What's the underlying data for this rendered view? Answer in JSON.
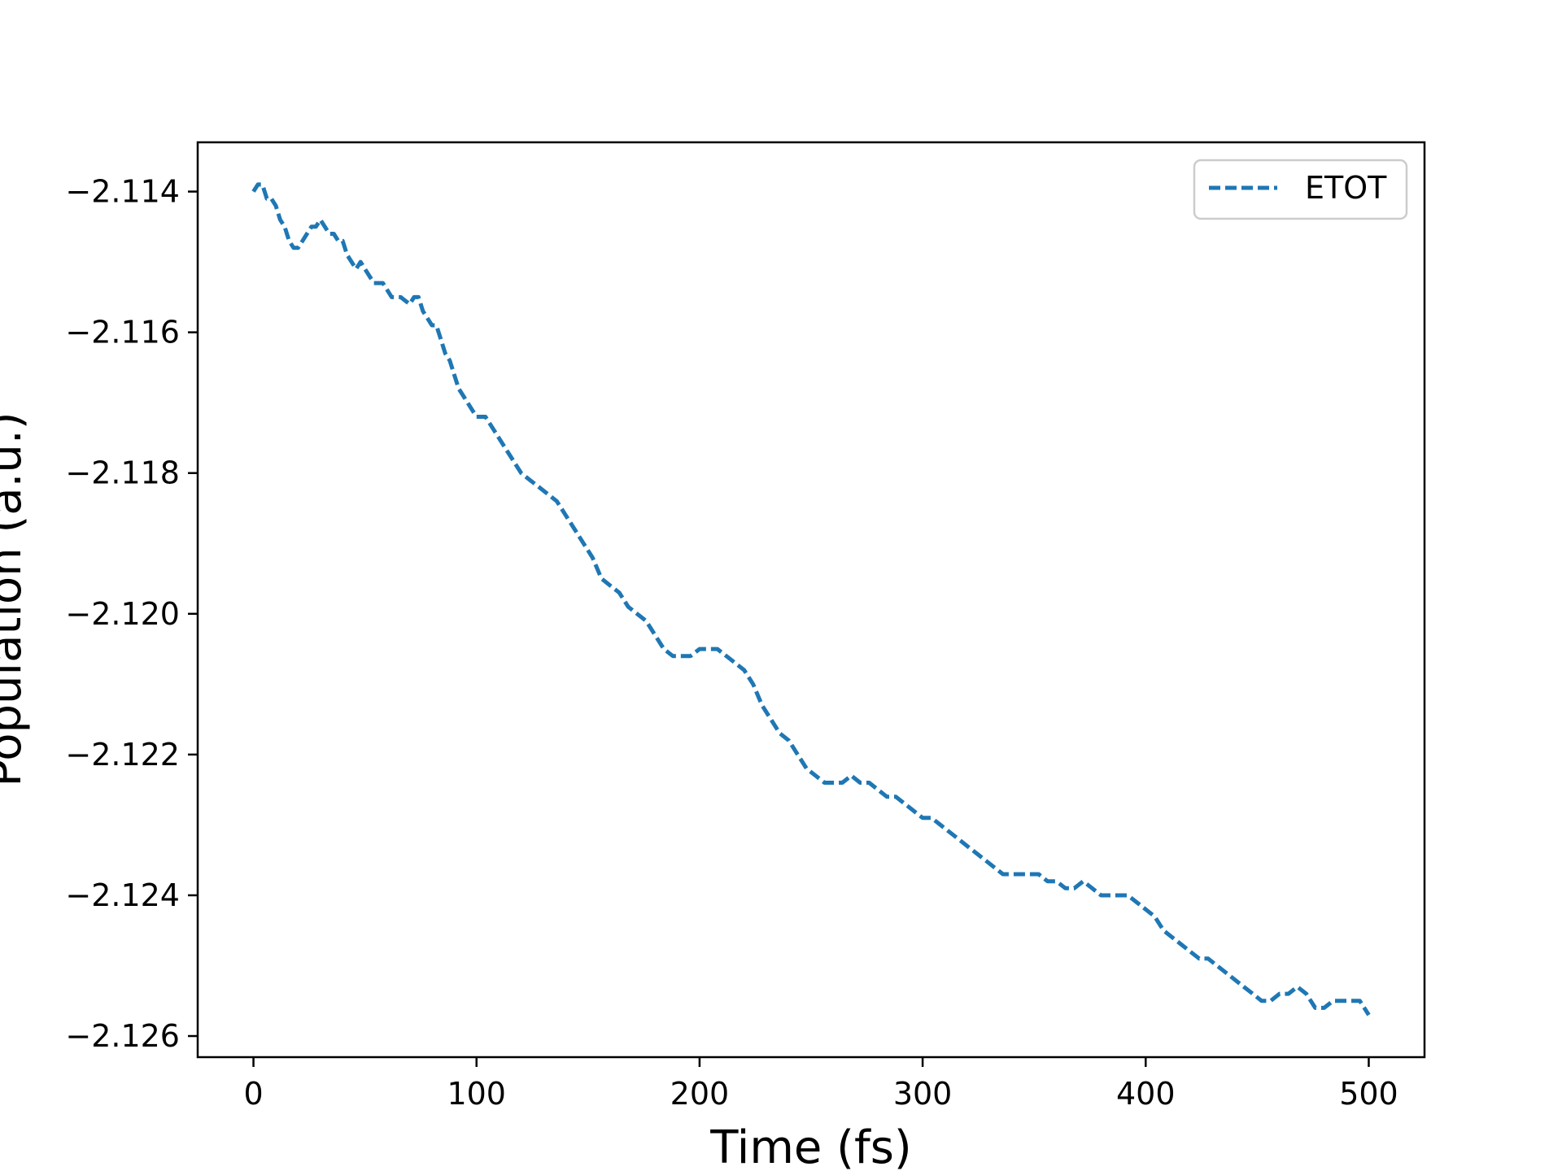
{
  "chart_data": {
    "type": "line",
    "title": "",
    "xlabel": "Time (fs)",
    "ylabel": "Population (a.u.)",
    "xlim": [
      -25,
      525
    ],
    "ylim": [
      -2.1263,
      -2.1133
    ],
    "xticks": [
      0,
      100,
      200,
      300,
      400,
      500
    ],
    "xtick_labels": [
      "0",
      "100",
      "200",
      "300",
      "400",
      "500"
    ],
    "yticks": [
      -2.114,
      -2.116,
      -2.118,
      -2.12,
      -2.122,
      -2.124,
      -2.126
    ],
    "ytick_labels": [
      "−2.114",
      "−2.116",
      "−2.118",
      "−2.120",
      "−2.122",
      "−2.124",
      "−2.126"
    ],
    "grid": false,
    "legend": {
      "position": "top-right",
      "entries": [
        "ETOT"
      ]
    },
    "series": [
      {
        "name": "ETOT",
        "color": "#1f77b4",
        "linestyle": "dashed",
        "x": [
          0,
          2,
          4,
          6,
          8,
          10,
          12,
          14,
          16,
          18,
          20,
          22,
          24,
          26,
          28,
          30,
          32,
          34,
          36,
          38,
          40,
          42,
          44,
          46,
          48,
          50,
          54,
          58,
          62,
          66,
          70,
          72,
          74,
          76,
          78,
          80,
          82,
          84,
          86,
          88,
          90,
          92,
          94,
          96,
          98,
          100,
          104,
          108,
          112,
          116,
          120,
          124,
          128,
          132,
          136,
          140,
          144,
          148,
          152,
          156,
          160,
          164,
          168,
          172,
          176,
          180,
          184,
          188,
          192,
          196,
          200,
          204,
          208,
          212,
          216,
          220,
          224,
          228,
          232,
          236,
          240,
          244,
          248,
          252,
          256,
          260,
          264,
          268,
          272,
          276,
          280,
          284,
          288,
          292,
          296,
          300,
          304,
          308,
          312,
          316,
          320,
          324,
          328,
          332,
          336,
          340,
          344,
          348,
          352,
          356,
          360,
          364,
          368,
          372,
          376,
          380,
          384,
          388,
          392,
          396,
          400,
          404,
          408,
          412,
          416,
          420,
          424,
          428,
          432,
          436,
          440,
          444,
          448,
          452,
          456,
          460,
          464,
          468,
          472,
          476,
          480,
          484,
          488,
          492,
          496,
          500
        ],
        "y": [
          -2.114,
          -2.1139,
          -2.1139,
          -2.1141,
          -2.1141,
          -2.1142,
          -2.1144,
          -2.1145,
          -2.1147,
          -2.1148,
          -2.1148,
          -2.1147,
          -2.1146,
          -2.1145,
          -2.1145,
          -2.1144,
          -2.1145,
          -2.1146,
          -2.1146,
          -2.1147,
          -2.1147,
          -2.1149,
          -2.115,
          -2.1151,
          -2.115,
          -2.1151,
          -2.1153,
          -2.1153,
          -2.1155,
          -2.1155,
          -2.1156,
          -2.1155,
          -2.1155,
          -2.1157,
          -2.1158,
          -2.1159,
          -2.1159,
          -2.1161,
          -2.1163,
          -2.1164,
          -2.1166,
          -2.1168,
          -2.1169,
          -2.117,
          -2.1171,
          -2.1172,
          -2.1172,
          -2.1174,
          -2.1176,
          -2.1178,
          -2.118,
          -2.1181,
          -2.1182,
          -2.1183,
          -2.1184,
          -2.1186,
          -2.1188,
          -2.119,
          -2.1192,
          -2.1195,
          -2.1196,
          -2.1197,
          -2.1199,
          -2.12,
          -2.1201,
          -2.1203,
          -2.1205,
          -2.1206,
          -2.1206,
          -2.1206,
          -2.1205,
          -2.1205,
          -2.1205,
          -2.1206,
          -2.1207,
          -2.1208,
          -2.121,
          -2.1213,
          -2.1215,
          -2.1217,
          -2.1218,
          -2.122,
          -2.1222,
          -2.1223,
          -2.1224,
          -2.1224,
          -2.1224,
          -2.1223,
          -2.1224,
          -2.1224,
          -2.1225,
          -2.1226,
          -2.1226,
          -2.1227,
          -2.1228,
          -2.1229,
          -2.1229,
          -2.123,
          -2.1231,
          -2.1232,
          -2.1233,
          -2.1234,
          -2.1235,
          -2.1236,
          -2.1237,
          -2.1237,
          -2.1237,
          -2.1237,
          -2.1237,
          -2.1238,
          -2.1238,
          -2.1239,
          -2.1239,
          -2.1238,
          -2.1239,
          -2.124,
          -2.124,
          -2.124,
          -2.124,
          -2.1241,
          -2.1242,
          -2.1243,
          -2.1245,
          -2.1246,
          -2.1247,
          -2.1248,
          -2.1249,
          -2.1249,
          -2.125,
          -2.1251,
          -2.1252,
          -2.1253,
          -2.1254,
          -2.1255,
          -2.1255,
          -2.1254,
          -2.1254,
          -2.1253,
          -2.1254,
          -2.1256,
          -2.1256,
          -2.1255,
          -2.1255,
          -2.1255,
          -2.1255,
          -2.1257
        ]
      }
    ]
  }
}
